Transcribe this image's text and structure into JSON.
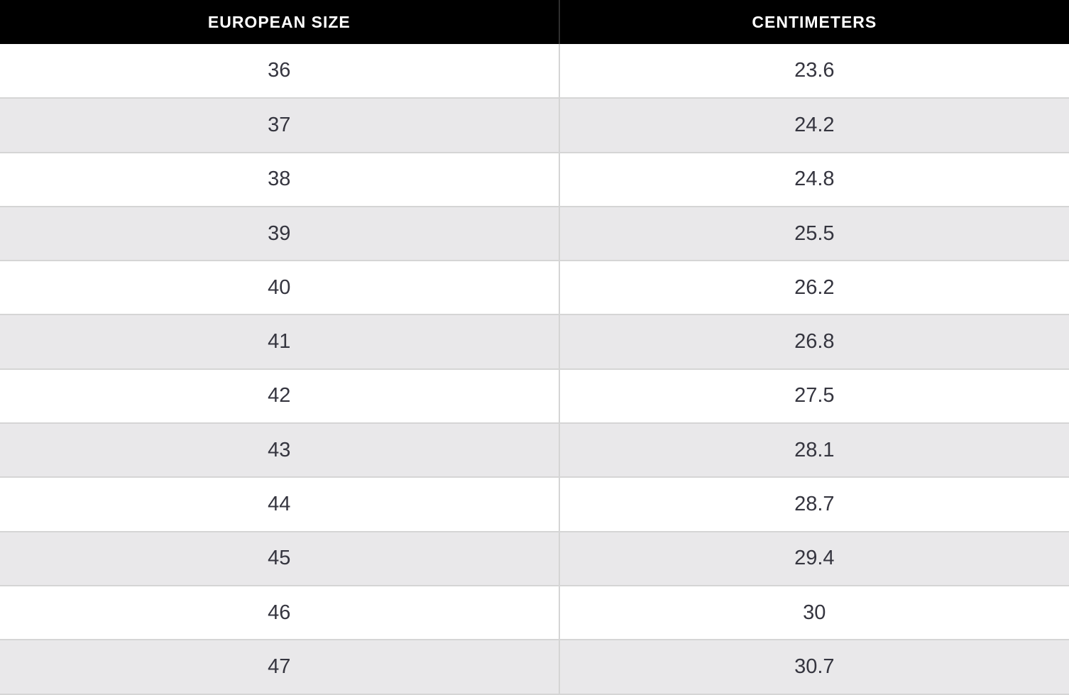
{
  "chart_data": {
    "type": "table",
    "columns": [
      "EUROPEAN SIZE",
      "CENTIMETERS"
    ],
    "rows": [
      [
        "36",
        "23.6"
      ],
      [
        "37",
        "24.2"
      ],
      [
        "38",
        "24.8"
      ],
      [
        "39",
        "25.5"
      ],
      [
        "40",
        "26.2"
      ],
      [
        "41",
        "26.8"
      ],
      [
        "42",
        "27.5"
      ],
      [
        "43",
        "28.1"
      ],
      [
        "44",
        "28.7"
      ],
      [
        "45",
        "29.4"
      ],
      [
        "46",
        "30"
      ],
      [
        "47",
        "30.7"
      ]
    ]
  },
  "colors": {
    "header_bg": "#000000",
    "header_text": "#ffffff",
    "row_bg": "#ffffff",
    "row_alt_bg": "#e9e8ea",
    "border": "#d5d5d5",
    "cell_text": "#35353f"
  }
}
